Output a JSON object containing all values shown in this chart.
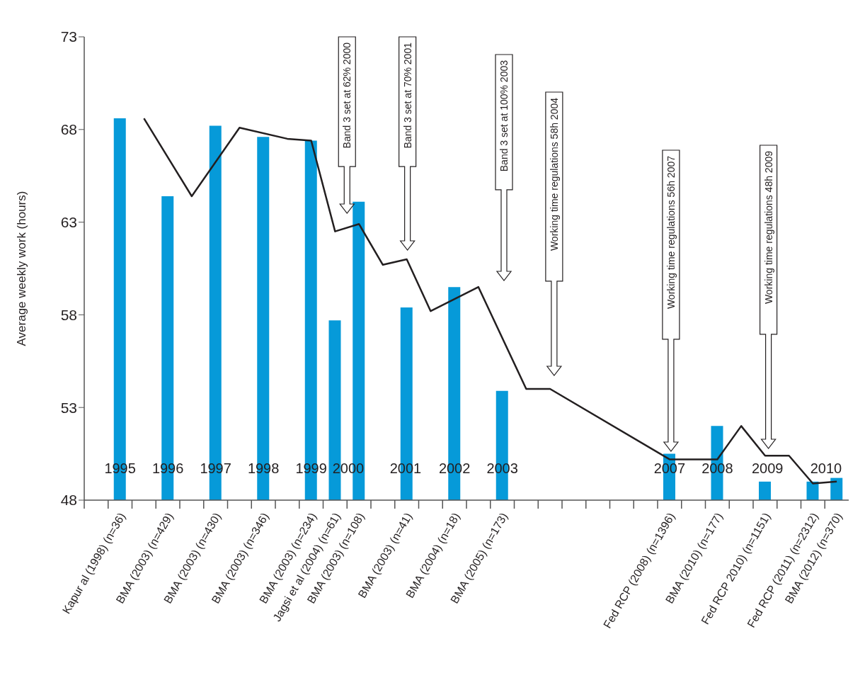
{
  "chart_data": {
    "type": "bar",
    "ylabel": "Average weekly work (hours)",
    "categories": [
      null,
      "Kapur al (1998) (n=36)",
      null,
      "BMA (2003) (n=429)",
      null,
      "BMA (2003) (n=430)",
      null,
      "BMA (2003) (n=346)",
      null,
      "BMA (2003) (n=234)",
      "Jagsi et al (2004) (n=61)",
      "BMA (2003) (n=108)",
      null,
      "BMA (2003) (n=41)",
      null,
      "BMA (2004) (n=18)",
      null,
      "BMA (2005) (n=173)",
      null,
      null,
      null,
      null,
      null,
      null,
      "Fed RCP (2008) (n=1396)",
      null,
      "BMA (2010) (n=177)",
      null,
      "Fed RCP 2010) (n=1151)",
      null,
      "Fed RCP (2011) (n=2312)",
      "BMA (2012) (n=370)"
    ],
    "ylim": [
      48,
      73
    ],
    "yticks": [
      48,
      53,
      58,
      63,
      68,
      73
    ],
    "series": [
      {
        "color": "#069ad9",
        "values": [
          null,
          68.6,
          null,
          64.4,
          null,
          68.2,
          null,
          67.6,
          null,
          67.4,
          57.7,
          64.1,
          null,
          58.4,
          null,
          59.5,
          null,
          53.9,
          null,
          null,
          null,
          null,
          null,
          null,
          50.5,
          null,
          52.0,
          null,
          49.0,
          null,
          49.0,
          49.2
        ]
      },
      {
        "type": "line",
        "color": "#231f20",
        "marker": "none",
        "line_style": "solid",
        "values": [
          null,
          null,
          68.6,
          null,
          64.4,
          null,
          68.1,
          null,
          67.5,
          67.4,
          62.5,
          62.9,
          60.7,
          61.0,
          58.2,
          null,
          59.5,
          null,
          54.0,
          54.0,
          null,
          null,
          null,
          null,
          50.2,
          null,
          50.2,
          52.0,
          50.4,
          50.4,
          48.9,
          49.0
        ]
      }
    ],
    "annotations": [
      "1995",
      "1996",
      "1997",
      "1998",
      "1999",
      "2000",
      "2001",
      "2002",
      "2003",
      "2007",
      "2008",
      "2009",
      "2010",
      "Band 3 set at 62% 2000",
      "Band 3 set at 70% 2001",
      "Band 3 set at 100% 2003",
      "Working time regulations 58h 2004",
      "Working time regulations 56h 2007",
      "Working time regulations 48h 2009"
    ]
  }
}
